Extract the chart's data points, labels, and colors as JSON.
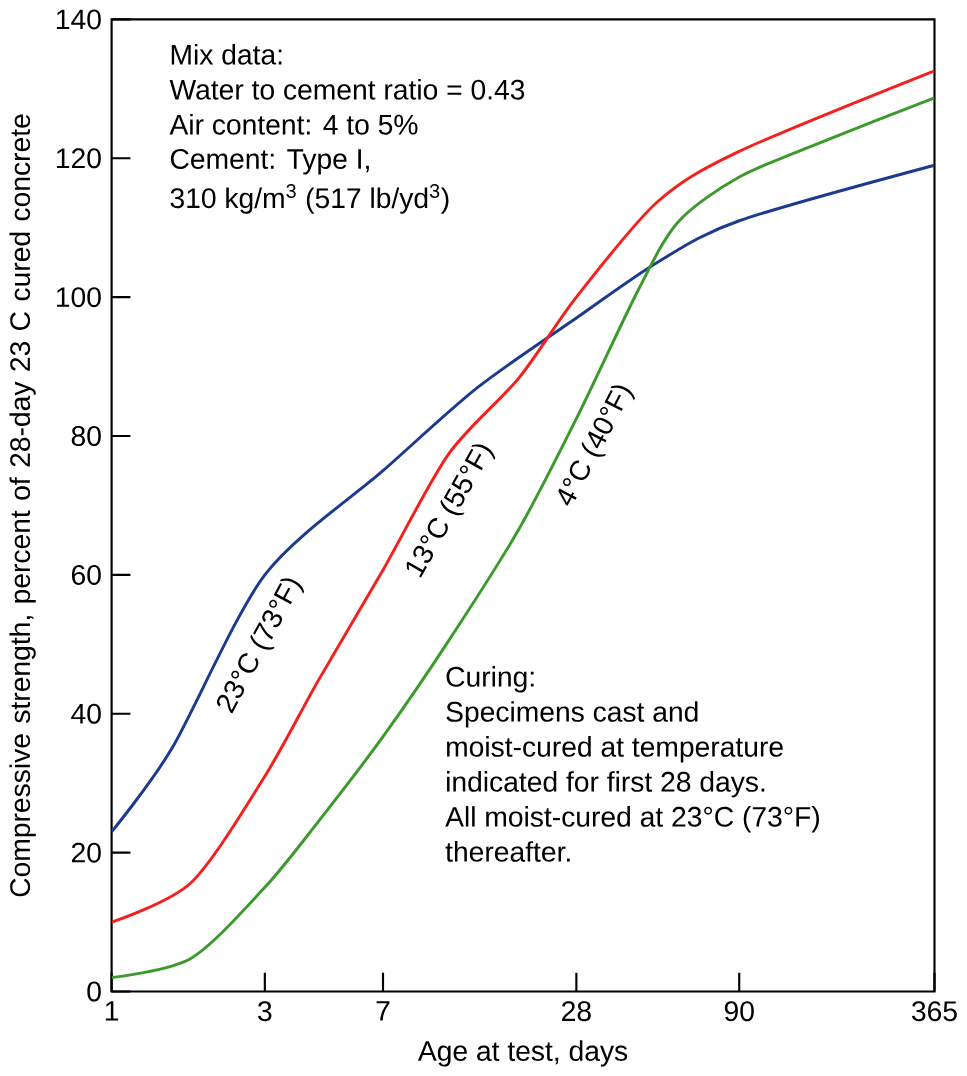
{
  "chart_data": {
    "type": "line",
    "xlabel": "Age at test, days",
    "ylabel": "Compressive strength, percent of 28-day 23 C cured concrete",
    "log": "x",
    "xlim": [
      1,
      365
    ],
    "xticks": [
      1,
      3,
      7,
      28,
      90,
      365
    ],
    "ylim": [
      0,
      140
    ],
    "yticks": [
      0,
      20,
      40,
      60,
      80,
      100,
      120,
      140
    ],
    "grid": false,
    "marker": "none",
    "line_style": "solid",
    "series": [
      {
        "name": "23°C (73°F)",
        "color": "#1c3a8e",
        "x": [
          1,
          1.54,
          3,
          7,
          13.8,
          28,
          50,
          90,
          365
        ],
        "values": [
          23,
          35,
          60,
          75,
          87,
          97,
          105,
          111,
          119
        ]
      },
      {
        "name": "13°C (55°F)",
        "color": "#f5201e",
        "x": [
          1,
          1.77,
          3,
          4.39,
          7,
          11.2,
          18.5,
          28,
          50,
          90,
          365
        ],
        "values": [
          10,
          15.7,
          31,
          44.7,
          60.7,
          77.4,
          88.3,
          100,
          113.7,
          121,
          132.6
        ]
      },
      {
        "name": "4°C (40°F)",
        "color": "#3c9a2c",
        "x": [
          1,
          1.77,
          3,
          4.39,
          7,
          11.2,
          18.5,
          28,
          43.6,
          58,
          90,
          164,
          365
        ],
        "values": [
          2,
          4.8,
          15,
          24.4,
          36.7,
          50.5,
          66.5,
          82.5,
          101,
          110.8,
          117.3,
          122.4,
          128.7
        ]
      }
    ],
    "annotations": [
      "Mix data:",
      "Water to cement ratio = 0.43",
      "Air content: 4 to 5%",
      "Cement: Type I,",
      "310 kg/m$^{3}$ (517 lb/yd$^{3}$)",
      "Curing:",
      "Specimens cast and",
      "moist-cured at temperature",
      "indicated for first 28 days.",
      "All moist-cured at 23°C (73°F)",
      "thereafter."
    ]
  }
}
